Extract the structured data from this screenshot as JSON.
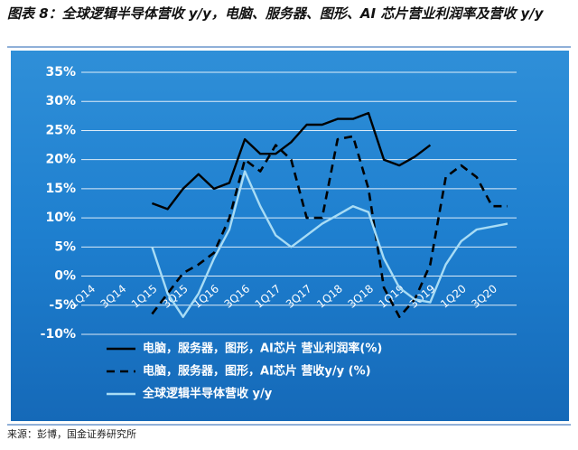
{
  "chart_data": {
    "type": "line",
    "title": "图表 8：全球逻辑半导体营收 y/y，电脑、服务器、图形、AI 芯片营业利润率及营收 y/y",
    "source": "来源：彭博，国金证券研究所",
    "categories": [
      "1Q14",
      null,
      "3Q14",
      null,
      "1Q15",
      null,
      "3Q15",
      null,
      "1Q16",
      null,
      "3Q16",
      null,
      "1Q17",
      null,
      "3Q17",
      null,
      "1Q18",
      null,
      "3Q18",
      null,
      "1Q19",
      null,
      "3Q19",
      null,
      "1Q20",
      null,
      "3Q20",
      null
    ],
    "series": [
      {
        "name": "电脑，服务器，图形，AI芯片 营业利润率(%)",
        "color": "#000000",
        "dash": false,
        "values": [
          null,
          null,
          null,
          null,
          12.5,
          11.5,
          15,
          17.5,
          15,
          16,
          23.5,
          21,
          21,
          23,
          26,
          26,
          27,
          27,
          28,
          20,
          19,
          20.5,
          22.5,
          null,
          null,
          null,
          null,
          null
        ]
      },
      {
        "name": "电脑，服务器，图形，AI芯片 营收y/y (%)",
        "color": "#000000",
        "dash": true,
        "values": [
          null,
          null,
          null,
          null,
          -6.5,
          -3,
          0.5,
          2,
          4,
          10,
          20,
          18,
          22.5,
          20,
          10,
          10,
          23.5,
          24,
          15,
          -2,
          -7,
          -4,
          2,
          17,
          19,
          17,
          12,
          12
        ]
      },
      {
        "name": "全球逻辑半导体营收 y/y",
        "color": "#a8dcf5",
        "dash": false,
        "values": [
          null,
          null,
          null,
          null,
          5,
          -3,
          -7,
          -3,
          3,
          8,
          18,
          12,
          7,
          5,
          7,
          9,
          10.5,
          12,
          11,
          3,
          -2,
          -4,
          -4.5,
          2,
          6,
          8,
          8.5,
          9
        ]
      }
    ],
    "ylim": [
      -10,
      35
    ],
    "yticks": [
      {
        "value": -10,
        "label": "-10%"
      },
      {
        "value": -5,
        "label": "-5%"
      },
      {
        "value": 0,
        "label": "0%"
      },
      {
        "value": 5,
        "label": "5%"
      },
      {
        "value": 10,
        "label": "10%"
      },
      {
        "value": 15,
        "label": "15%"
      },
      {
        "value": 20,
        "label": "20%"
      },
      {
        "value": 25,
        "label": "25%"
      },
      {
        "value": 30,
        "label": "30%"
      },
      {
        "value": 35,
        "label": "35%"
      }
    ],
    "grid": true
  }
}
